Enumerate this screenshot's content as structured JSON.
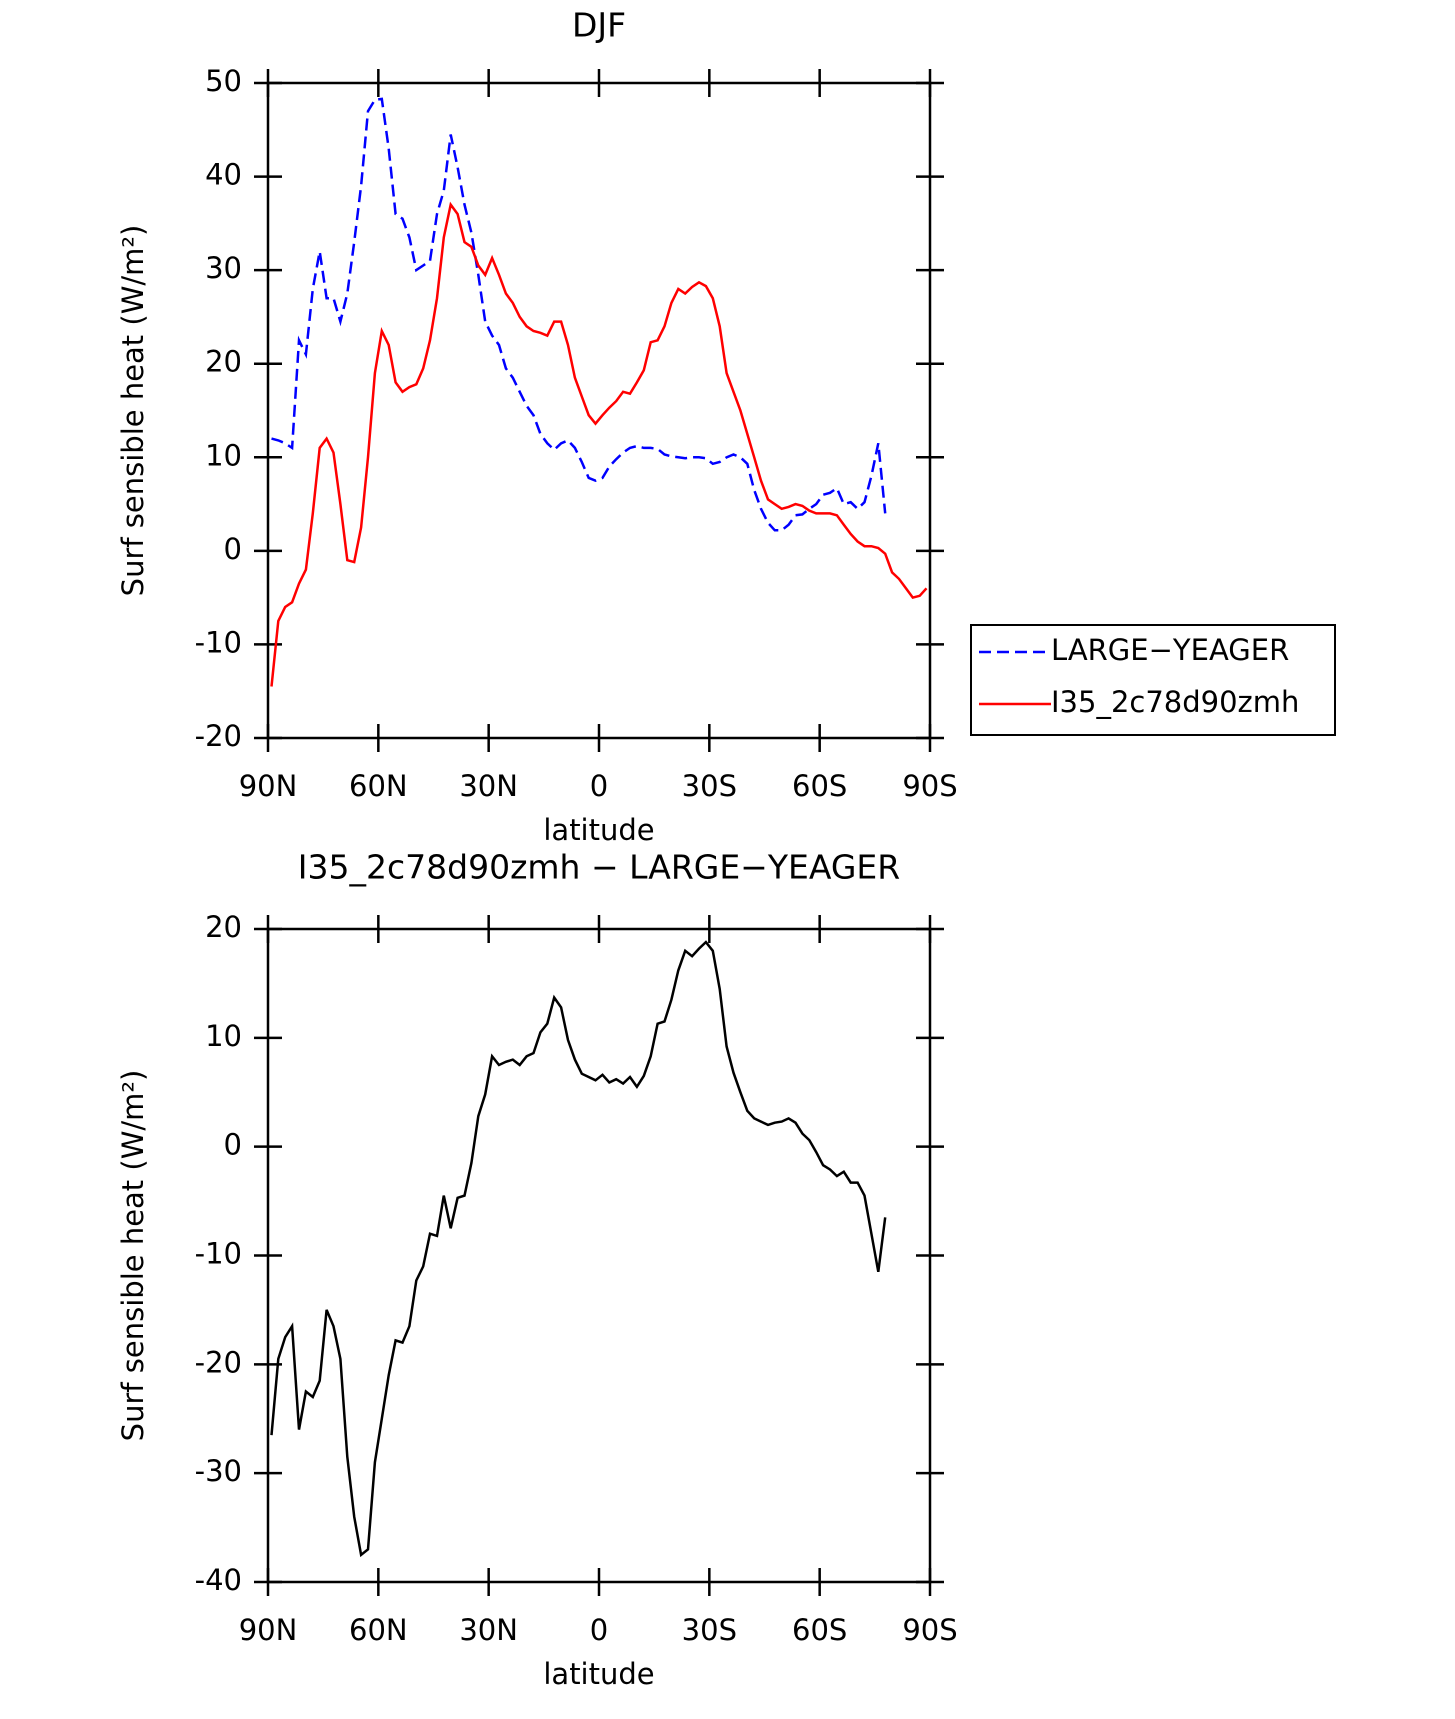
{
  "chart_data": [
    {
      "type": "line",
      "title": "DJF",
      "xlabel": "latitude",
      "ylabel": "Surf sensible heat (W/m²)",
      "xlim": [
        90,
        -90
      ],
      "xticks": [
        {
          "value": 90,
          "label": "90N"
        },
        {
          "value": 60,
          "label": "60N"
        },
        {
          "value": 30,
          "label": "30N"
        },
        0,
        {
          "value": -30,
          "label": "30S"
        },
        {
          "value": -60,
          "label": "60S"
        },
        {
          "value": -90,
          "label": "90S"
        }
      ],
      "ylim": [
        -20,
        50
      ],
      "yticks": [
        -20,
        -10,
        0,
        10,
        20,
        30,
        40,
        50
      ],
      "legend": "right",
      "x": [
        89.06,
        87.19,
        85.31,
        83.44,
        81.56,
        79.69,
        77.81,
        75.94,
        74.06,
        72.19,
        70.31,
        68.44,
        66.56,
        64.69,
        62.81,
        60.94,
        59.06,
        57.19,
        55.31,
        53.44,
        51.56,
        49.69,
        47.81,
        45.94,
        44.06,
        42.19,
        40.31,
        38.44,
        36.56,
        34.69,
        32.81,
        30.94,
        29.06,
        27.19,
        25.31,
        23.44,
        21.56,
        19.69,
        17.81,
        15.94,
        14.06,
        12.19,
        10.31,
        8.44,
        6.56,
        4.69,
        2.81,
        0.94,
        -0.94,
        -2.81,
        -4.69,
        -6.56,
        -8.44,
        -10.31,
        -12.19,
        -14.06,
        -15.94,
        -17.81,
        -19.69,
        -21.56,
        -23.44,
        -25.31,
        -27.19,
        -29.06,
        -30.94,
        -32.81,
        -34.69,
        -36.56,
        -38.44,
        -40.31,
        -42.19,
        -44.06,
        -45.94,
        -47.81,
        -49.69,
        -51.56,
        -53.44,
        -55.31,
        -57.19,
        -59.06,
        -60.94,
        -62.81,
        -64.69,
        -66.56,
        -68.44,
        -70.31,
        -72.19,
        -74.06,
        -75.94,
        -77.81,
        -79.69,
        -81.56,
        -83.44,
        -85.31,
        -87.19,
        -89.06
      ],
      "series": [
        {
          "name": "LARGE−YEAGER",
          "color": "#0000ff",
          "dash": true,
          "values": [
            12,
            11.8,
            11.5,
            11,
            22.5,
            21,
            28,
            32,
            27,
            27,
            24.5,
            27.5,
            33,
            39,
            47,
            48.2,
            48.3,
            43,
            36,
            35.5,
            33.5,
            30,
            30.5,
            31,
            36,
            38.5,
            44.5,
            41,
            37,
            34,
            29.5,
            24.5,
            23,
            22,
            19.5,
            18.5,
            17,
            15.5,
            14.5,
            12.5,
            11.5,
            10.8,
            11.5,
            11.8,
            11,
            9.5,
            7.8,
            7.5,
            7.8,
            9,
            9.8,
            10.5,
            11,
            11.2,
            11,
            11,
            10.9,
            10.3,
            10.1,
            10,
            9.9,
            10,
            10,
            9.9,
            9.3,
            9.5,
            10,
            10.3,
            10,
            9.3,
            6.5,
            4.5,
            3,
            2.2,
            2.2,
            2.8,
            3.8,
            3.9,
            4.5,
            5,
            6,
            6.2,
            6.7,
            5,
            5.2,
            4.5,
            5.2,
            8,
            11.5,
            4,
            null,
            null,
            null,
            null,
            null,
            null
          ]
        },
        {
          "name": "I35_2c78d90zmh",
          "color": "#ff0000",
          "dash": false,
          "values": [
            -14.5,
            -7.5,
            -6,
            -5.5,
            -3.5,
            -2,
            4,
            11,
            12,
            10.5,
            5,
            -1,
            -1.2,
            2.5,
            10,
            19,
            23.5,
            22,
            18,
            17,
            17.5,
            17.8,
            19.5,
            22.5,
            27,
            33.5,
            37,
            36,
            33,
            32.5,
            30.5,
            29.5,
            31.3,
            29.5,
            27.5,
            26.5,
            25,
            24,
            23.5,
            23.3,
            23,
            24.5,
            24.5,
            22,
            18.5,
            16.5,
            14.5,
            13.6,
            14.5,
            15.3,
            16,
            17,
            16.8,
            18,
            19.3,
            22.3,
            22.5,
            24,
            26.5,
            28,
            27.5,
            28.2,
            28.7,
            28.3,
            27,
            24,
            19,
            17,
            15,
            12.5,
            10,
            7.5,
            5.5,
            5,
            4.5,
            4.7,
            5,
            4.8,
            4.3,
            4,
            4,
            4,
            3.8,
            2.8,
            1.8,
            1,
            0.5,
            0.5,
            0.3,
            -0.3,
            -2.3,
            -3,
            -4,
            -5,
            -4.8,
            -4
          ]
        }
      ]
    },
    {
      "type": "line",
      "title": "I35_2c78d90zmh − LARGE−YEAGER",
      "xlabel": "latitude",
      "ylabel": "Surf sensible heat (W/m²)",
      "xlim": [
        90,
        -90
      ],
      "xticks": [
        {
          "value": 90,
          "label": "90N"
        },
        {
          "value": 60,
          "label": "60N"
        },
        {
          "value": 30,
          "label": "30N"
        },
        0,
        {
          "value": -30,
          "label": "30S"
        },
        {
          "value": -60,
          "label": "60S"
        },
        {
          "value": -90,
          "label": "90S"
        }
      ],
      "ylim": [
        -40,
        20
      ],
      "yticks": [
        -40,
        -30,
        -20,
        -10,
        0,
        10,
        20
      ],
      "x": [
        89.06,
        87.19,
        85.31,
        83.44,
        81.56,
        79.69,
        77.81,
        75.94,
        74.06,
        72.19,
        70.31,
        68.44,
        66.56,
        64.69,
        62.81,
        60.94,
        59.06,
        57.19,
        55.31,
        53.44,
        51.56,
        49.69,
        47.81,
        45.94,
        44.06,
        42.19,
        40.31,
        38.44,
        36.56,
        34.69,
        32.81,
        30.94,
        29.06,
        27.19,
        25.31,
        23.44,
        21.56,
        19.69,
        17.81,
        15.94,
        14.06,
        12.19,
        10.31,
        8.44,
        6.56,
        4.69,
        2.81,
        0.94,
        -0.94,
        -2.81,
        -4.69,
        -6.56,
        -8.44,
        -10.31,
        -12.19,
        -14.06,
        -15.94,
        -17.81,
        -19.69,
        -21.56,
        -23.44,
        -25.31,
        -27.19,
        -29.06,
        -30.94,
        -32.81,
        -34.69,
        -36.56,
        -38.44,
        -40.31,
        -42.19,
        -44.06,
        -45.94,
        -47.81,
        -49.69,
        -51.56,
        -53.44,
        -55.31,
        -57.19,
        -59.06,
        -60.94,
        -62.81,
        -64.69,
        -66.56,
        -68.44,
        -70.31,
        -72.19,
        -74.06,
        -75.94,
        -77.81,
        -79.69,
        -81.56,
        -83.44,
        -85.31,
        -87.19,
        -89.06
      ],
      "series": [
        {
          "color": "#000000",
          "dash": false,
          "values": [
            -26.5,
            -19.5,
            -17.5,
            -16.5,
            -26,
            -22.5,
            -23,
            -21.5,
            -15,
            -16.5,
            -19.5,
            -28.5,
            -34,
            -37.5,
            -37,
            -29,
            -25,
            -21,
            -17.8,
            -18,
            -16.5,
            -12.3,
            -11,
            -8,
            -8.2,
            -4.5,
            -7.5,
            -4.7,
            -4.5,
            -1.5,
            2.8,
            4.8,
            8.3,
            7.5,
            7.8,
            8,
            7.5,
            8.3,
            8.6,
            10.5,
            11.3,
            13.7,
            12.8,
            9.8,
            8,
            6.7,
            6.4,
            6.1,
            6.6,
            5.9,
            6.2,
            5.8,
            6.4,
            5.5,
            6.5,
            8.3,
            11.3,
            11.5,
            13.5,
            16.2,
            18,
            17.5,
            18.2,
            18.8,
            18,
            14.5,
            9.2,
            6.8,
            5,
            3.3,
            2.6,
            2.3,
            2,
            2.2,
            2.3,
            2.6,
            2.2,
            1.2,
            0.6,
            -0.5,
            -1.7,
            -2.1,
            -2.7,
            -2.3,
            -3.3,
            -3.3,
            -4.5,
            -8,
            -11.5,
            -6.5,
            null,
            null,
            null,
            null,
            null,
            null
          ]
        }
      ]
    }
  ]
}
